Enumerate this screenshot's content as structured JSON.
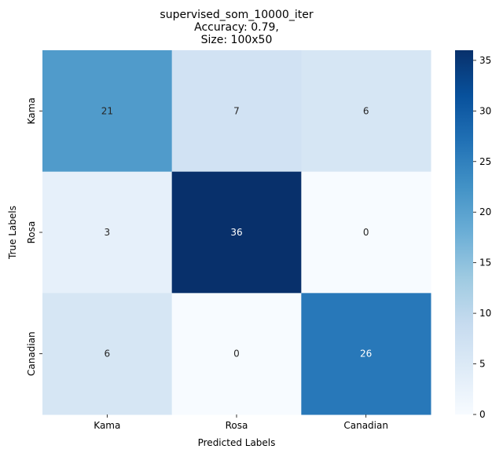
{
  "chart_data": {
    "type": "heatmap",
    "title_lines": [
      "supervised_som_10000_iter",
      "Accuracy: 0.79,",
      "Size: 100x50"
    ],
    "xlabel": "Predicted Labels",
    "ylabel": "True Labels",
    "x_categories": [
      "Kama",
      "Rosa",
      "Canadian"
    ],
    "y_categories": [
      "Kama",
      "Rosa",
      "Canadian"
    ],
    "values": [
      [
        21,
        7,
        6
      ],
      [
        3,
        36,
        0
      ],
      [
        6,
        0,
        26
      ]
    ],
    "colorbar": {
      "min": 0,
      "max": 36,
      "ticks": [
        0,
        5,
        10,
        15,
        20,
        25,
        30,
        35
      ],
      "colormap": "Blues"
    }
  }
}
